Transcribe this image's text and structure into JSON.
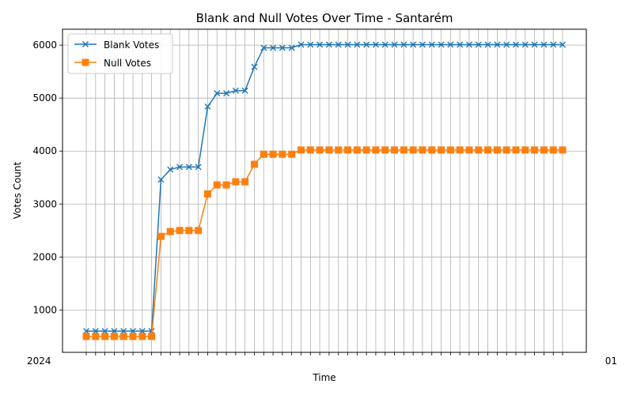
{
  "chart_data": {
    "type": "line",
    "title": "Blank and Null Votes Over Time - Santarém",
    "xlabel": "Time",
    "ylabel": "Votes Count",
    "ylim": [
      200,
      6300
    ],
    "yticks": [
      1000,
      2000,
      3000,
      4000,
      5000,
      6000
    ],
    "grid": true,
    "legend_position": "upper left",
    "x_tick_labels_note": "52 overlapping timestamp labels starting with 2024 and ending with 01",
    "x_first_label": "2024",
    "x_last_label": "01",
    "n_points": 52,
    "series": [
      {
        "name": "Blank Votes",
        "color": "#1f77b4",
        "marker": "x",
        "values": [
          600,
          600,
          600,
          600,
          600,
          600,
          600,
          600,
          3460,
          3650,
          3700,
          3700,
          3700,
          4840,
          5090,
          5090,
          5140,
          5140,
          5590,
          5950,
          5950,
          5950,
          5950,
          6010,
          6010,
          6010,
          6010,
          6010,
          6010,
          6010,
          6010,
          6010,
          6010,
          6010,
          6010,
          6010,
          6010,
          6010,
          6010,
          6010,
          6010,
          6010,
          6010,
          6010,
          6010,
          6010,
          6010,
          6010,
          6010,
          6010,
          6010,
          6010
        ]
      },
      {
        "name": "Null Votes",
        "color": "#ff7f0e",
        "marker": "s",
        "values": [
          500,
          500,
          500,
          500,
          500,
          500,
          500,
          500,
          2390,
          2480,
          2500,
          2500,
          2500,
          3190,
          3360,
          3360,
          3420,
          3420,
          3750,
          3940,
          3940,
          3940,
          3940,
          4020,
          4020,
          4020,
          4020,
          4020,
          4020,
          4020,
          4020,
          4020,
          4020,
          4020,
          4020,
          4020,
          4020,
          4020,
          4020,
          4020,
          4020,
          4020,
          4020,
          4020,
          4020,
          4020,
          4020,
          4020,
          4020,
          4020,
          4020,
          4020
        ]
      }
    ]
  }
}
